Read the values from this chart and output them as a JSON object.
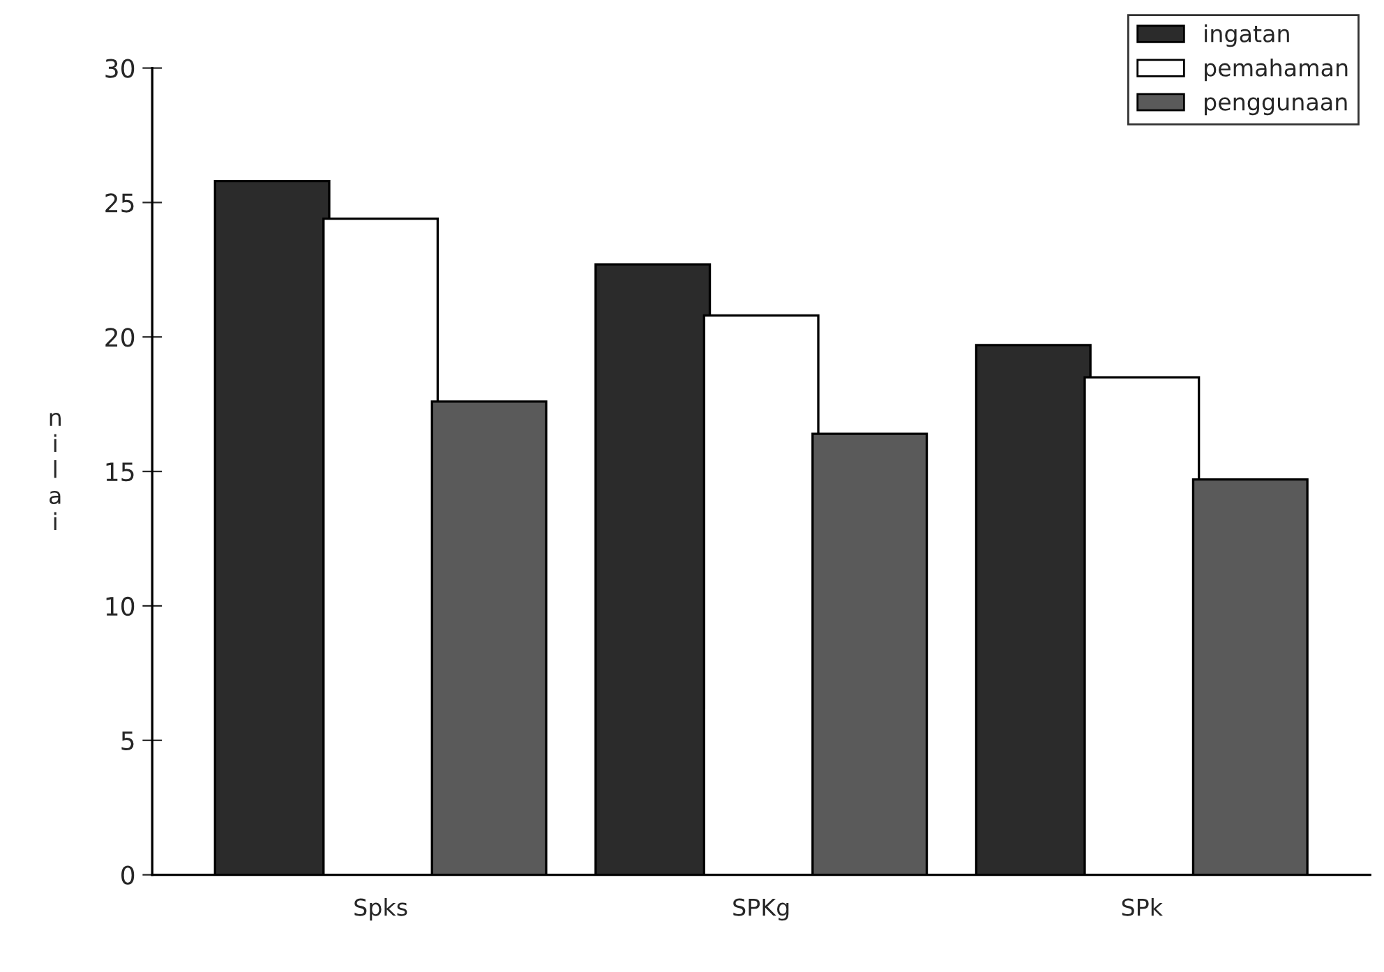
{
  "chart_data": {
    "type": "bar",
    "ylabel": "nilai",
    "categories": [
      "Spks",
      "SPKg",
      "SPk"
    ],
    "series": [
      {
        "name": "ingatan",
        "color": "#2b2b2b",
        "values": [
          25.8,
          22.7,
          19.7
        ]
      },
      {
        "name": "pemahaman",
        "color": "#ffffff",
        "values": [
          24.4,
          20.8,
          18.5
        ]
      },
      {
        "name": "penggunaan",
        "color": "#5a5a5a",
        "values": [
          17.6,
          16.4,
          14.7
        ]
      }
    ],
    "ylim": [
      0,
      30
    ],
    "yticks": [
      0,
      5,
      10,
      15,
      20,
      25,
      30
    ],
    "grid": false,
    "legend": "top right"
  }
}
